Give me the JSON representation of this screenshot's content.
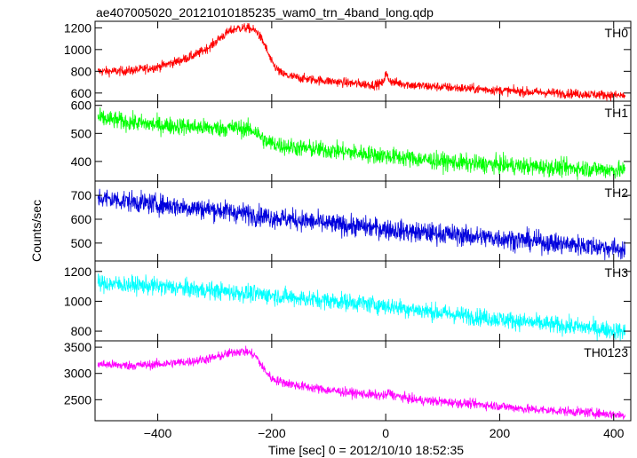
{
  "chart_data": {
    "type": "line",
    "title": "ae407005020_20121010185235_wam0_trn_4band_long.qdp",
    "xlabel": "Time [sec] 0 = 2012/10/10 18:52:35",
    "ylabel": "Counts/sec",
    "xlim": [
      -510,
      430
    ],
    "x_ticks": [
      -400,
      -200,
      0,
      200,
      400
    ],
    "x_tick_labels": [
      "−400",
      "−200",
      "0",
      "200",
      "400"
    ],
    "grid": false,
    "panels": [
      {
        "name": "TH0",
        "color": "#ff0000",
        "ylim": [
          525,
          1260
        ],
        "y_ticks": [
          600,
          800,
          1000,
          1200
        ],
        "noise": 22,
        "x": [
          -505,
          -470,
          -440,
          -400,
          -360,
          -330,
          -305,
          -290,
          -275,
          -262,
          -250,
          -238,
          -225,
          -212,
          -200,
          -185,
          -170,
          -140,
          -100,
          -60,
          -20,
          -5,
          0,
          5,
          12,
          25,
          50,
          100,
          150,
          200,
          250,
          300,
          350,
          400,
          420
        ],
        "y": [
          800,
          800,
          810,
          840,
          900,
          960,
          1040,
          1110,
          1165,
          1195,
          1200,
          1195,
          1160,
          1040,
          880,
          785,
          755,
          730,
          710,
          690,
          675,
          690,
          780,
          730,
          700,
          690,
          670,
          655,
          640,
          625,
          610,
          600,
          590,
          580,
          575
        ]
      },
      {
        "name": "TH1",
        "color": "#00ff00",
        "ylim": [
          330,
          615
        ],
        "y_ticks": [
          400,
          500,
          600
        ],
        "noise": 16,
        "x": [
          -505,
          -450,
          -400,
          -350,
          -300,
          -260,
          -230,
          -210,
          -180,
          -150,
          -100,
          -50,
          0,
          50,
          100,
          150,
          200,
          250,
          300,
          350,
          400,
          420
        ],
        "y": [
          555,
          540,
          530,
          525,
          518,
          520,
          510,
          470,
          455,
          448,
          440,
          430,
          420,
          410,
          400,
          392,
          388,
          382,
          378,
          375,
          370,
          368
        ]
      },
      {
        "name": "TH2",
        "color": "#0000dd",
        "ylim": [
          425,
          760
        ],
        "y_ticks": [
          500,
          600,
          700
        ],
        "noise": 22,
        "x": [
          -505,
          -450,
          -400,
          -350,
          -300,
          -250,
          -200,
          -150,
          -100,
          -50,
          0,
          50,
          100,
          150,
          200,
          250,
          300,
          350,
          400,
          420
        ],
        "y": [
          690,
          675,
          662,
          650,
          640,
          625,
          608,
          596,
          580,
          570,
          560,
          545,
          540,
          528,
          520,
          510,
          498,
          490,
          478,
          472
        ]
      },
      {
        "name": "TH3",
        "color": "#00ffff",
        "ylim": [
          735,
          1270
        ],
        "y_ticks": [
          800,
          1000,
          1200
        ],
        "noise": 30,
        "x": [
          -505,
          -450,
          -400,
          -350,
          -300,
          -250,
          -200,
          -150,
          -100,
          -50,
          0,
          50,
          100,
          150,
          200,
          250,
          300,
          350,
          400,
          420
        ],
        "y": [
          1120,
          1110,
          1100,
          1085,
          1070,
          1055,
          1040,
          1020,
          1005,
          990,
          970,
          945,
          920,
          900,
          880,
          860,
          840,
          825,
          805,
          795
        ]
      },
      {
        "name": "TH0123",
        "color": "#ff00ff",
        "ylim": [
          2100,
          3620
        ],
        "y_ticks": [
          2500,
          3000,
          3500
        ],
        "noise": 45,
        "x": [
          -505,
          -460,
          -420,
          -380,
          -340,
          -310,
          -290,
          -275,
          -262,
          -250,
          -240,
          -228,
          -215,
          -200,
          -180,
          -150,
          -100,
          -50,
          0,
          5,
          15,
          50,
          100,
          150,
          200,
          250,
          300,
          350,
          400,
          420
        ],
        "y": [
          3180,
          3150,
          3160,
          3190,
          3230,
          3280,
          3330,
          3380,
          3420,
          3420,
          3400,
          3330,
          3100,
          2900,
          2830,
          2760,
          2680,
          2620,
          2570,
          2640,
          2580,
          2500,
          2460,
          2420,
          2380,
          2320,
          2290,
          2260,
          2220,
          2200
        ]
      }
    ]
  }
}
